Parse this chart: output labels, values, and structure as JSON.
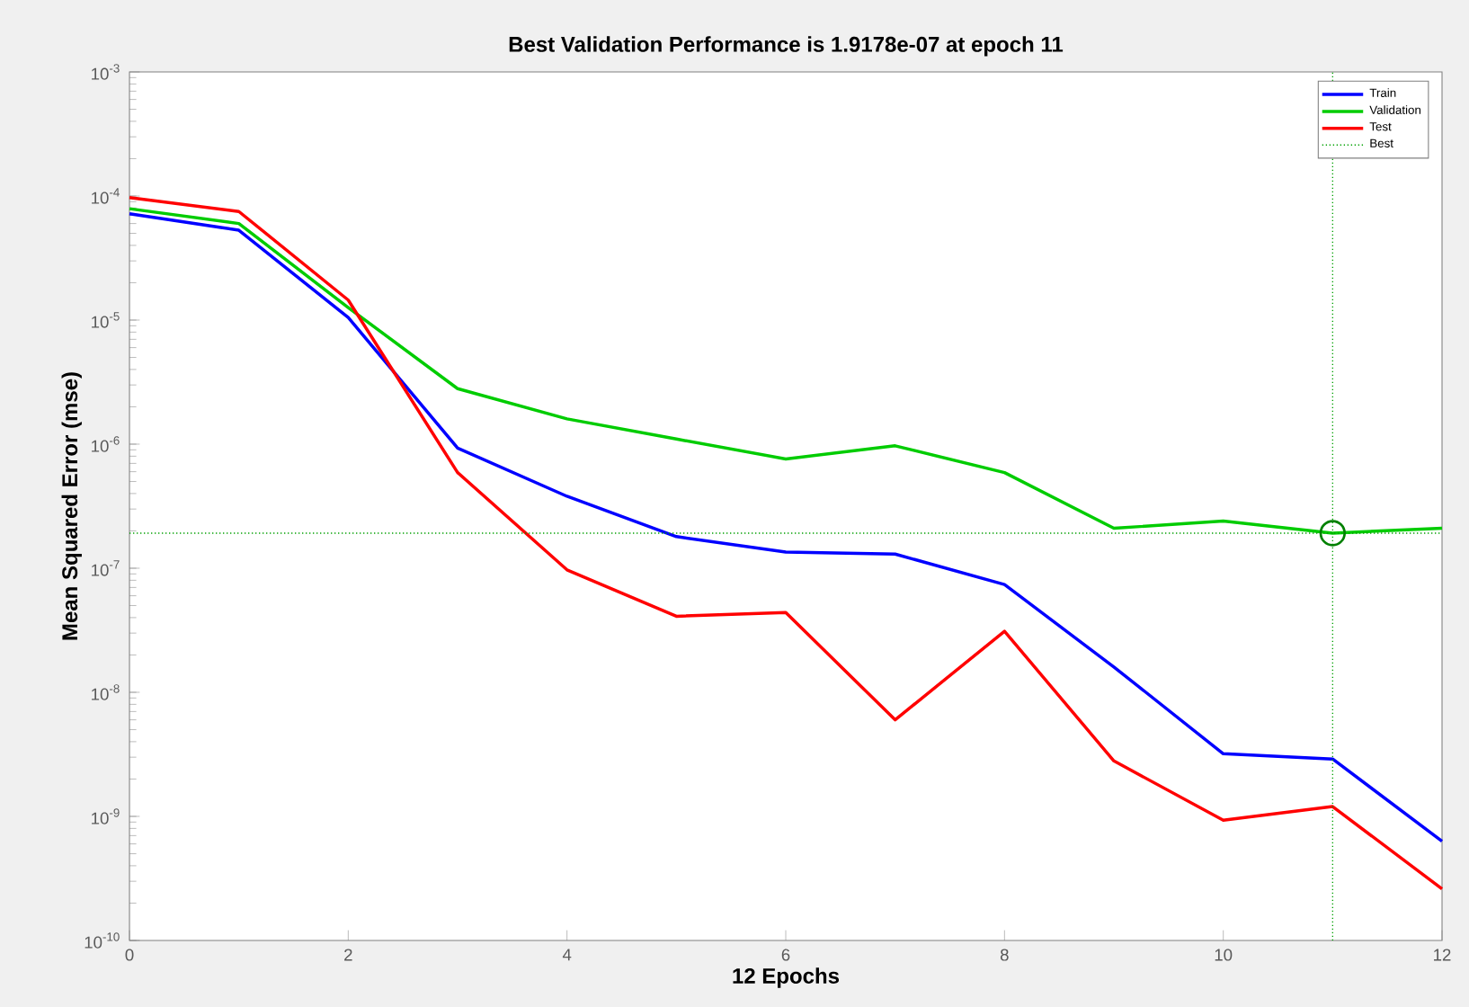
{
  "chart_data": {
    "type": "line",
    "title": "Best Validation Performance is 1.9178e-07 at epoch 11",
    "xlabel": "12 Epochs",
    "ylabel": "Mean Squared Error  (mse)",
    "x": [
      0,
      1,
      2,
      3,
      4,
      5,
      6,
      7,
      8,
      9,
      10,
      11,
      12
    ],
    "series": [
      {
        "name": "Train",
        "color": "#0000ff",
        "values": [
          7.2e-05,
          5.3e-05,
          1.05e-05,
          9.3e-07,
          3.8e-07,
          1.8e-07,
          1.35e-07,
          1.3e-07,
          7.4e-08,
          1.6e-08,
          3.2e-09,
          2.9e-09,
          6.3e-10
        ]
      },
      {
        "name": "Validation",
        "color": "#00cc00",
        "values": [
          7.9e-05,
          6e-05,
          1.26e-05,
          2.8e-06,
          1.6e-06,
          1.1e-06,
          7.6e-07,
          9.7e-07,
          5.9e-07,
          2.1e-07,
          2.4e-07,
          1.9178e-07,
          2.1e-07
        ]
      },
      {
        "name": "Test",
        "color": "#ff0000",
        "values": [
          9.7e-05,
          7.5e-05,
          1.45e-05,
          5.9e-07,
          9.7e-08,
          4.1e-08,
          4.4e-08,
          6e-09,
          3.1e-08,
          2.8e-09,
          9.3e-10,
          1.2e-09,
          2.6e-10
        ]
      },
      {
        "type": "scatter",
        "marker": "circle",
        "color": "#008000",
        "x": [
          11
        ],
        "values": [
          1.9178e-07
        ]
      }
    ],
    "log": "y",
    "xlim": [
      0,
      12
    ],
    "ylim": [
      1e-10,
      0.001
    ],
    "xticks": [
      0,
      2,
      4,
      6,
      8,
      10,
      12
    ],
    "yticks": [
      {
        "value": 1e-10,
        "label": "10$^{-10}$"
      },
      {
        "value": 1e-09,
        "label": "10$^{-9}$"
      },
      {
        "value": 1e-08,
        "label": "10$^{-8}$"
      },
      {
        "value": 1e-07,
        "label": "10$^{-7}$"
      },
      {
        "value": 1e-06,
        "label": "10$^{-6}$"
      },
      {
        "value": 1e-05,
        "label": "10$^{-5}$"
      },
      {
        "value": 0.0001,
        "label": "10$^{-4}$"
      },
      {
        "value": 0.001,
        "label": "10$^{-3}$"
      }
    ],
    "ref_lines": [
      {
        "axis": "x",
        "value": 11,
        "label": "Best",
        "color": "#00a000",
        "line_style": "dotted"
      },
      {
        "axis": "y",
        "value": 1.9178e-07,
        "color": "#00a000",
        "line_style": "dotted"
      }
    ],
    "grid": false,
    "legend": "top right"
  }
}
